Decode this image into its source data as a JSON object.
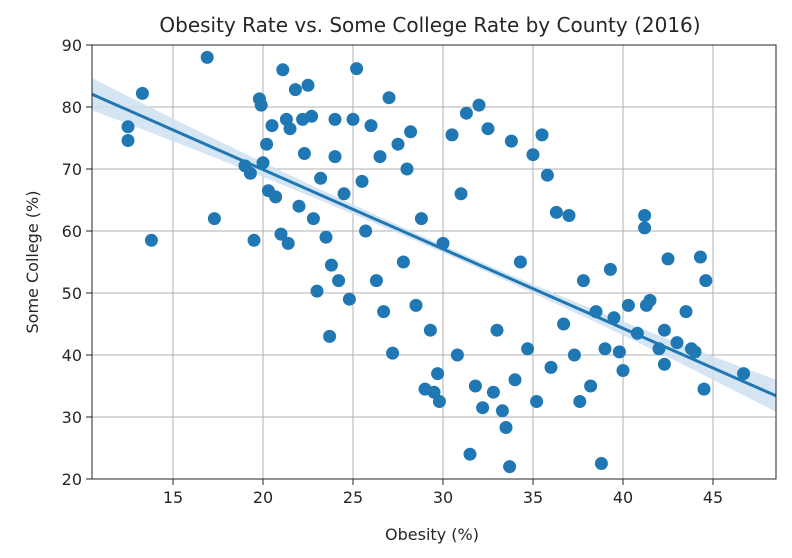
{
  "chart_data": {
    "type": "scatter",
    "title": "Obesity Rate vs. Some College Rate by County (2016)",
    "xlabel": "Obesity (%)",
    "ylabel": "Some College (%)",
    "xlim": [
      10.5,
      48.5
    ],
    "ylim": [
      20,
      90
    ],
    "xticks": [
      15,
      20,
      25,
      30,
      35,
      40,
      45
    ],
    "yticks": [
      20,
      30,
      40,
      50,
      60,
      70,
      80,
      90
    ],
    "grid": true,
    "point_color": "#1f77b4",
    "band_color": "#cfe1f1",
    "regression": {
      "slope": -1.28,
      "intercept": 95.5,
      "band_x": [
        10.5,
        48.5
      ]
    },
    "points": [
      [
        12.5,
        76.8
      ],
      [
        12.5,
        74.6
      ],
      [
        13.3,
        82.2
      ],
      [
        13.8,
        58.5
      ],
      [
        16.9,
        88.0
      ],
      [
        17.3,
        62.0
      ],
      [
        19.0,
        70.5
      ],
      [
        19.3,
        69.3
      ],
      [
        19.5,
        58.5
      ],
      [
        19.8,
        81.3
      ],
      [
        19.9,
        80.3
      ],
      [
        20.0,
        71.0
      ],
      [
        20.2,
        74.0
      ],
      [
        20.3,
        66.5
      ],
      [
        20.5,
        77.0
      ],
      [
        20.7,
        65.5
      ],
      [
        21.0,
        59.5
      ],
      [
        21.1,
        86.0
      ],
      [
        21.3,
        78.0
      ],
      [
        21.4,
        58.0
      ],
      [
        21.5,
        76.5
      ],
      [
        21.8,
        82.8
      ],
      [
        22.0,
        64.0
      ],
      [
        22.2,
        78.0
      ],
      [
        22.3,
        72.5
      ],
      [
        22.5,
        83.5
      ],
      [
        22.7,
        78.5
      ],
      [
        22.8,
        62.0
      ],
      [
        23.0,
        50.3
      ],
      [
        23.2,
        68.5
      ],
      [
        23.5,
        59.0
      ],
      [
        23.7,
        43.0
      ],
      [
        23.8,
        54.5
      ],
      [
        24.0,
        78.0
      ],
      [
        24.0,
        72.0
      ],
      [
        24.2,
        52.0
      ],
      [
        24.5,
        66.0
      ],
      [
        24.8,
        49.0
      ],
      [
        25.0,
        78.0
      ],
      [
        25.2,
        86.2
      ],
      [
        25.5,
        68.0
      ],
      [
        25.7,
        60.0
      ],
      [
        26.0,
        77.0
      ],
      [
        26.3,
        52.0
      ],
      [
        26.5,
        72.0
      ],
      [
        26.7,
        47.0
      ],
      [
        27.0,
        81.5
      ],
      [
        27.2,
        40.3
      ],
      [
        27.5,
        74.0
      ],
      [
        27.8,
        55.0
      ],
      [
        28.0,
        70.0
      ],
      [
        28.2,
        76.0
      ],
      [
        28.5,
        48.0
      ],
      [
        28.8,
        62.0
      ],
      [
        29.0,
        34.5
      ],
      [
        29.3,
        44.0
      ],
      [
        29.5,
        34.0
      ],
      [
        29.7,
        37.0
      ],
      [
        29.8,
        32.5
      ],
      [
        30.0,
        58.0
      ],
      [
        30.5,
        75.5
      ],
      [
        30.8,
        40.0
      ],
      [
        31.0,
        66.0
      ],
      [
        31.3,
        79.0
      ],
      [
        31.5,
        24.0
      ],
      [
        31.8,
        35.0
      ],
      [
        32.0,
        80.3
      ],
      [
        32.2,
        31.5
      ],
      [
        32.5,
        76.5
      ],
      [
        32.8,
        34.0
      ],
      [
        33.0,
        44.0
      ],
      [
        33.3,
        31.0
      ],
      [
        33.5,
        28.3
      ],
      [
        33.7,
        22.0
      ],
      [
        33.8,
        74.5
      ],
      [
        34.0,
        36.0
      ],
      [
        34.3,
        55.0
      ],
      [
        34.7,
        41.0
      ],
      [
        35.0,
        72.3
      ],
      [
        35.2,
        32.5
      ],
      [
        35.5,
        75.5
      ],
      [
        35.8,
        69.0
      ],
      [
        36.0,
        38.0
      ],
      [
        36.3,
        63.0
      ],
      [
        36.7,
        45.0
      ],
      [
        37.0,
        62.5
      ],
      [
        37.3,
        40.0
      ],
      [
        37.6,
        32.5
      ],
      [
        37.8,
        52.0
      ],
      [
        38.2,
        35.0
      ],
      [
        38.5,
        47.0
      ],
      [
        38.8,
        22.5
      ],
      [
        39.0,
        41.0
      ],
      [
        39.3,
        53.8
      ],
      [
        39.5,
        46.0
      ],
      [
        39.8,
        40.5
      ],
      [
        40.0,
        37.5
      ],
      [
        40.3,
        48.0
      ],
      [
        40.8,
        43.5
      ],
      [
        41.2,
        60.5
      ],
      [
        41.2,
        62.5
      ],
      [
        41.3,
        48.0
      ],
      [
        41.5,
        48.8
      ],
      [
        42.0,
        41.0
      ],
      [
        42.3,
        44.0
      ],
      [
        42.3,
        38.5
      ],
      [
        42.5,
        55.5
      ],
      [
        43.0,
        42.0
      ],
      [
        43.5,
        47.0
      ],
      [
        43.8,
        41.0
      ],
      [
        44.0,
        40.5
      ],
      [
        44.3,
        55.8
      ],
      [
        44.5,
        34.5
      ],
      [
        44.6,
        52.0
      ],
      [
        46.7,
        37.0
      ]
    ]
  }
}
